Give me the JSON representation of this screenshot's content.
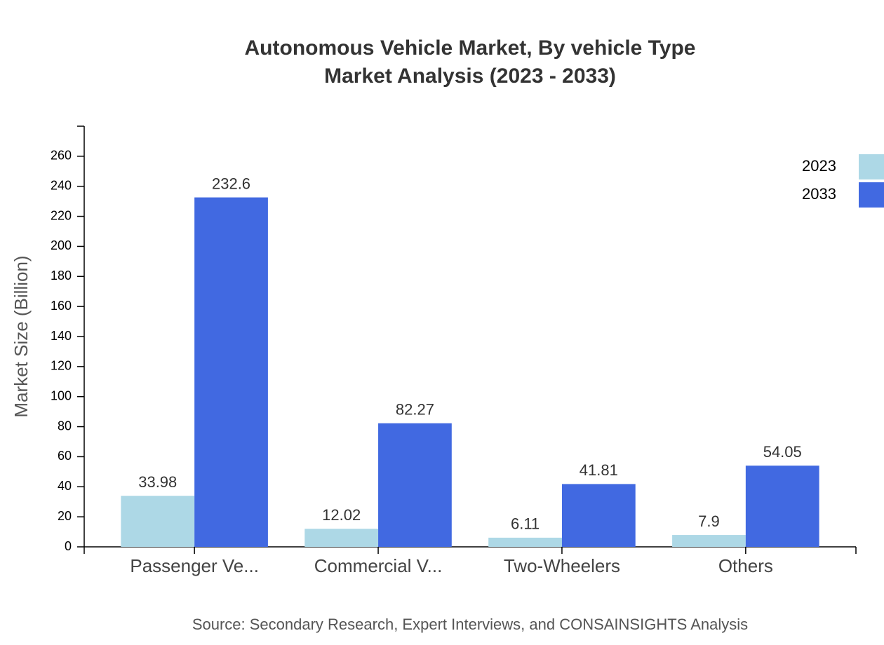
{
  "chart_data": {
    "type": "bar",
    "title": "Autonomous Vehicle Market, By vehicle Type",
    "subtitle": "Market Analysis (2023 - 2033)",
    "y_label": "Market Size (Billion)",
    "source": "Source: Secondary Research, Expert Interviews, and CONSAINSIGHTS Analysis",
    "categories": [
      "Passenger Ve...",
      "Commercial V...",
      "Two-Wheelers",
      "Others"
    ],
    "series": [
      {
        "name": "2023",
        "color": "#add8e6",
        "values": [
          33.98,
          12.02,
          6.11,
          7.9
        ]
      },
      {
        "name": "2033",
        "color": "#4169e1",
        "values": [
          232.6,
          82.27,
          41.81,
          54.05
        ]
      }
    ],
    "ylim": [
      0,
      280
    ],
    "yticks": [
      0,
      20,
      40,
      60,
      80,
      100,
      120,
      140,
      160,
      180,
      200,
      220,
      240,
      260
    ],
    "legend": "top-right"
  }
}
